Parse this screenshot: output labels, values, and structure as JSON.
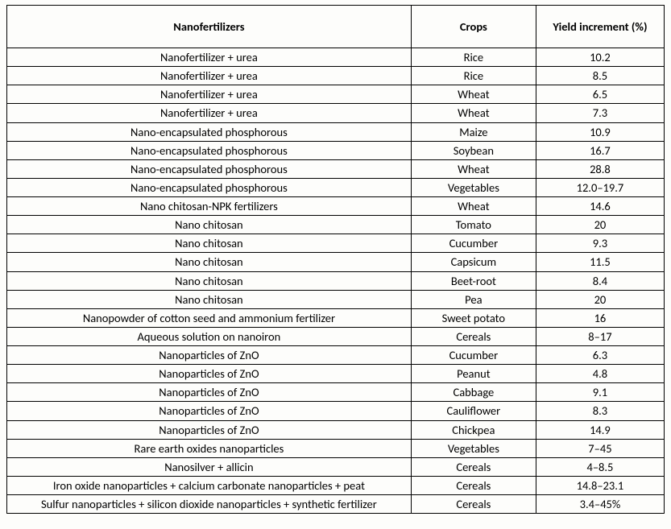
{
  "table": {
    "type": "table",
    "background_color": "#fdfdfb",
    "border_color": "#000000",
    "text_color": "#000000",
    "font_family": "Calibri",
    "header_fontsize": 14.5,
    "body_fontsize": 14.5,
    "header_fontweight": 700,
    "body_fontweight": 400,
    "column_widths_pct": [
      61.5,
      19,
      19.5
    ],
    "columns": [
      "Nanofertilizers",
      "Crops",
      "Yield increment (%)"
    ],
    "rows": [
      [
        "Nanofertilizer + urea",
        "Rice",
        "10.2"
      ],
      [
        "Nanofertilizer + urea",
        "Rice",
        "8.5"
      ],
      [
        "Nanofertilizer + urea",
        "Wheat",
        "6.5"
      ],
      [
        "Nanofertilizer + urea",
        "Wheat",
        "7.3"
      ],
      [
        "Nano-encapsulated phosphorous",
        "Maize",
        "10.9"
      ],
      [
        "Nano-encapsulated phosphorous",
        "Soybean",
        "16.7"
      ],
      [
        "Nano-encapsulated phosphorous",
        "Wheat",
        "28.8"
      ],
      [
        "Nano-encapsulated phosphorous",
        "Vegetables",
        "12.0–19.7"
      ],
      [
        "Nano chitosan-NPK fertilizers",
        "Wheat",
        "14.6"
      ],
      [
        "Nano chitosan",
        "Tomato",
        "20"
      ],
      [
        "Nano chitosan",
        "Cucumber",
        "9.3"
      ],
      [
        "Nano chitosan",
        "Capsicum",
        "11.5"
      ],
      [
        "Nano chitosan",
        "Beet-root",
        "8.4"
      ],
      [
        "Nano chitosan",
        "Pea",
        "20"
      ],
      [
        "Nanopowder of cotton seed and ammonium fertilizer",
        "Sweet potato",
        "16"
      ],
      [
        "Aqueous solution on nanoiron",
        "Cereals",
        "8–17"
      ],
      [
        "Nanoparticles of ZnO",
        "Cucumber",
        "6.3"
      ],
      [
        "Nanoparticles of ZnO",
        "Peanut",
        "4.8"
      ],
      [
        "Nanoparticles of ZnO",
        "Cabbage",
        "9.1"
      ],
      [
        "Nanoparticles of ZnO",
        "Cauliflower",
        "8.3"
      ],
      [
        "Nanoparticles of ZnO",
        "Chickpea",
        "14.9"
      ],
      [
        "Rare earth oxides nanoparticles",
        "Vegetables",
        "7–45"
      ],
      [
        "Nanosilver + allicin",
        "Cereals",
        "4–8.5"
      ],
      [
        "Iron oxide nanoparticles + calcium carbonate nanoparticles + peat",
        "Cereals",
        "14.8–23.1"
      ],
      [
        "Sulfur nanoparticles + silicon dioxide nanoparticles + synthetic fertilizer",
        "Cereals",
        "3.4–45%"
      ]
    ]
  }
}
